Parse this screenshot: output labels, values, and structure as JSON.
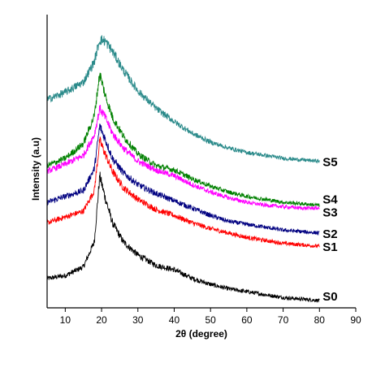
{
  "chart_data": {
    "type": "line",
    "xlabel": "2θ (degree)",
    "ylabel": "Intensity (a.u)",
    "xlim": [
      5,
      90
    ],
    "xticks": [
      10,
      20,
      30,
      40,
      50,
      60,
      70,
      80,
      90
    ],
    "y_ticks_shown": false,
    "grid": false,
    "legend": "none",
    "series": [
      {
        "name": "S0",
        "color": "#000000",
        "baseline": 0.04,
        "points": [
          [
            5,
            0.2
          ],
          [
            10,
            0.22
          ],
          [
            15,
            0.28
          ],
          [
            18,
            0.45
          ],
          [
            19.5,
            0.9
          ],
          [
            21,
            0.75
          ],
          [
            23,
            0.58
          ],
          [
            26,
            0.45
          ],
          [
            30,
            0.36
          ],
          [
            35,
            0.29
          ],
          [
            40,
            0.26
          ],
          [
            45,
            0.2
          ],
          [
            50,
            0.16
          ],
          [
            55,
            0.13
          ],
          [
            60,
            0.11
          ],
          [
            65,
            0.09
          ],
          [
            70,
            0.07
          ],
          [
            75,
            0.06
          ],
          [
            80,
            0.05
          ]
        ]
      },
      {
        "name": "S1",
        "color": "#ff0000",
        "baseline": 0.395,
        "points": [
          [
            5,
            0.58
          ],
          [
            10,
            0.62
          ],
          [
            15,
            0.66
          ],
          [
            18,
            0.8
          ],
          [
            19.5,
            1.14
          ],
          [
            21,
            1.05
          ],
          [
            23,
            0.93
          ],
          [
            26,
            0.82
          ],
          [
            30,
            0.74
          ],
          [
            35,
            0.67
          ],
          [
            40,
            0.63
          ],
          [
            45,
            0.58
          ],
          [
            50,
            0.54
          ],
          [
            55,
            0.51
          ],
          [
            60,
            0.48
          ],
          [
            65,
            0.46
          ],
          [
            70,
            0.44
          ],
          [
            75,
            0.43
          ],
          [
            80,
            0.42
          ]
        ]
      },
      {
        "name": "S2",
        "color": "#000080",
        "baseline": 0.49,
        "points": [
          [
            5,
            0.72
          ],
          [
            10,
            0.76
          ],
          [
            15,
            0.8
          ],
          [
            18,
            0.95
          ],
          [
            19.5,
            1.24
          ],
          [
            21,
            1.15
          ],
          [
            23,
            1.02
          ],
          [
            26,
            0.92
          ],
          [
            30,
            0.84
          ],
          [
            35,
            0.78
          ],
          [
            40,
            0.73
          ],
          [
            45,
            0.68
          ],
          [
            50,
            0.63
          ],
          [
            55,
            0.59
          ],
          [
            60,
            0.57
          ],
          [
            65,
            0.55
          ],
          [
            70,
            0.53
          ],
          [
            75,
            0.52
          ],
          [
            80,
            0.51
          ]
        ]
      },
      {
        "name": "S3",
        "color": "#ff00ff",
        "baseline": 0.66,
        "points": [
          [
            5,
            0.93
          ],
          [
            10,
            0.98
          ],
          [
            15,
            1.04
          ],
          [
            18,
            1.18
          ],
          [
            19.5,
            1.36
          ],
          [
            21,
            1.3
          ],
          [
            23,
            1.19
          ],
          [
            26,
            1.09
          ],
          [
            30,
            1.0
          ],
          [
            35,
            0.94
          ],
          [
            40,
            0.9
          ],
          [
            45,
            0.84
          ],
          [
            50,
            0.79
          ],
          [
            55,
            0.75
          ],
          [
            60,
            0.72
          ],
          [
            65,
            0.7
          ],
          [
            70,
            0.69
          ],
          [
            75,
            0.68
          ],
          [
            80,
            0.68
          ]
        ]
      },
      {
        "name": "S4",
        "color": "#008000",
        "baseline": 0.7,
        "points": [
          [
            5,
            0.97
          ],
          [
            10,
            1.02
          ],
          [
            15,
            1.12
          ],
          [
            18,
            1.31
          ],
          [
            19.5,
            1.6
          ],
          [
            21,
            1.45
          ],
          [
            23,
            1.3
          ],
          [
            26,
            1.17
          ],
          [
            30,
            1.05
          ],
          [
            35,
            0.97
          ],
          [
            40,
            0.94
          ],
          [
            45,
            0.88
          ],
          [
            50,
            0.83
          ],
          [
            55,
            0.79
          ],
          [
            60,
            0.76
          ],
          [
            65,
            0.74
          ],
          [
            70,
            0.72
          ],
          [
            75,
            0.71
          ],
          [
            80,
            0.7
          ]
        ]
      },
      {
        "name": "S5",
        "color": "#2a8a8a",
        "baseline": 0.98,
        "points": [
          [
            5,
            1.42
          ],
          [
            10,
            1.47
          ],
          [
            15,
            1.54
          ],
          [
            18,
            1.68
          ],
          [
            19.5,
            1.83
          ],
          [
            21,
            1.82
          ],
          [
            23,
            1.75
          ],
          [
            26,
            1.62
          ],
          [
            30,
            1.48
          ],
          [
            35,
            1.36
          ],
          [
            40,
            1.27
          ],
          [
            45,
            1.19
          ],
          [
            50,
            1.13
          ],
          [
            55,
            1.09
          ],
          [
            60,
            1.06
          ],
          [
            65,
            1.04
          ],
          [
            70,
            1.02
          ],
          [
            75,
            1.01
          ],
          [
            80,
            1.0
          ]
        ]
      }
    ]
  }
}
